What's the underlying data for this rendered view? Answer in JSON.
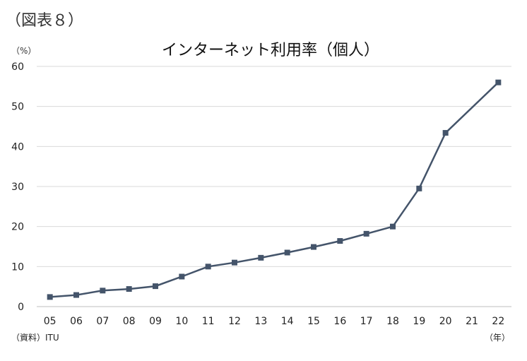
{
  "figure_label": "（図表８）",
  "source_note": "（資料）ITU",
  "chart_data": {
    "type": "line",
    "title": "インターネット利用率（個人）",
    "yunit": "（%）",
    "xunit": "（年）",
    "ylim": [
      0,
      60
    ],
    "yticks": [
      0,
      10,
      20,
      30,
      40,
      50,
      60
    ],
    "grid": true,
    "legend": "none",
    "color": "#44546a",
    "x": [
      "05",
      "06",
      "07",
      "08",
      "09",
      "10",
      "11",
      "12",
      "13",
      "14",
      "15",
      "16",
      "17",
      "18",
      "19",
      "20",
      "21",
      "22"
    ],
    "series": [
      {
        "values": [
          2.4,
          2.9,
          4.0,
          4.4,
          5.1,
          7.5,
          10.0,
          11.0,
          12.2,
          13.5,
          14.9,
          16.4,
          18.2,
          20.0,
          29.5,
          43.4,
          null,
          56.0
        ]
      }
    ]
  }
}
